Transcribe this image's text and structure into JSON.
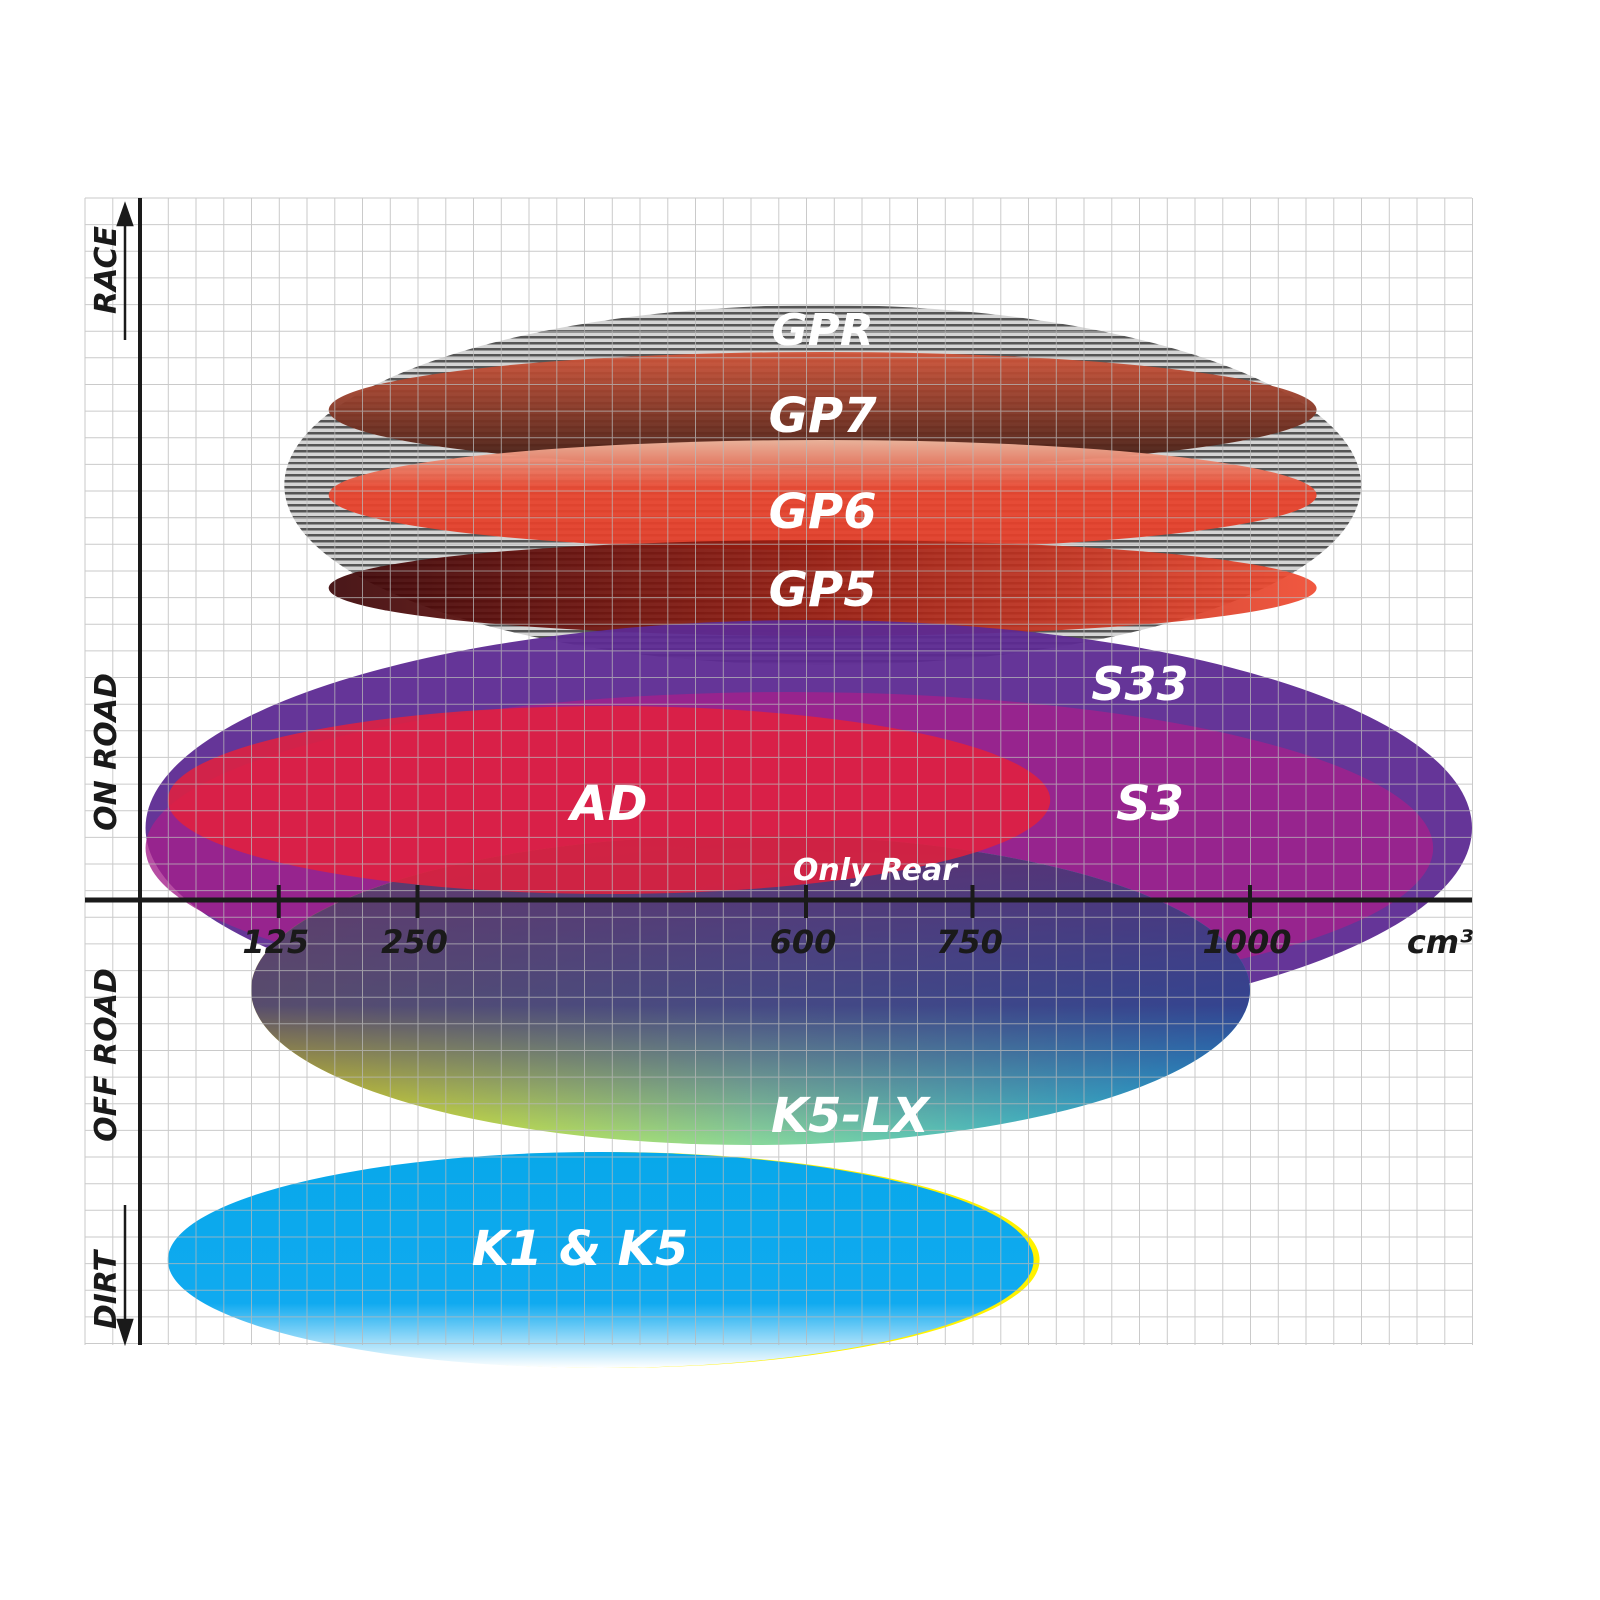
{
  "chart_data": {
    "type": "diagram",
    "xlabel": "cm³",
    "x_ticks": [
      125,
      250,
      600,
      750,
      1000
    ],
    "x_tick_labels": [
      "125",
      "250",
      "600",
      "750",
      "1000"
    ],
    "xlim": [
      0,
      1200
    ],
    "y_categories": [
      "RACE",
      "ON ROAD",
      "OFF ROAD",
      "DIRT"
    ],
    "grid": true,
    "products": [
      {
        "name": "GPR",
        "cc_range": [
          130,
          1100
        ],
        "color": "#9a9a9a",
        "pattern": "stripes"
      },
      {
        "name": "GP7",
        "cc_range": [
          170,
          1060
        ],
        "color": "#8a3a28"
      },
      {
        "name": "GP6",
        "cc_range": [
          170,
          1060
        ],
        "color": "#e8452e"
      },
      {
        "name": "GP5",
        "cc_range": [
          170,
          1060
        ],
        "color": "#8a1a10"
      },
      {
        "name": "S33",
        "cc_range": [
          5,
          1200
        ],
        "color": "#5a2a90"
      },
      {
        "name": "S3",
        "cc_range": [
          5,
          1165
        ],
        "color": "#a0208a"
      },
      {
        "name": "AD",
        "cc_range": [
          25,
          820
        ],
        "color": "#e0203a"
      },
      {
        "name": "K5-LX",
        "cc_range": [
          100,
          1000
        ],
        "color": "#30b8d8",
        "note": "Only Rear"
      },
      {
        "name": "K1 & K5",
        "cc_range": [
          25,
          805
        ],
        "color": "#08a8e8"
      }
    ]
  }
}
